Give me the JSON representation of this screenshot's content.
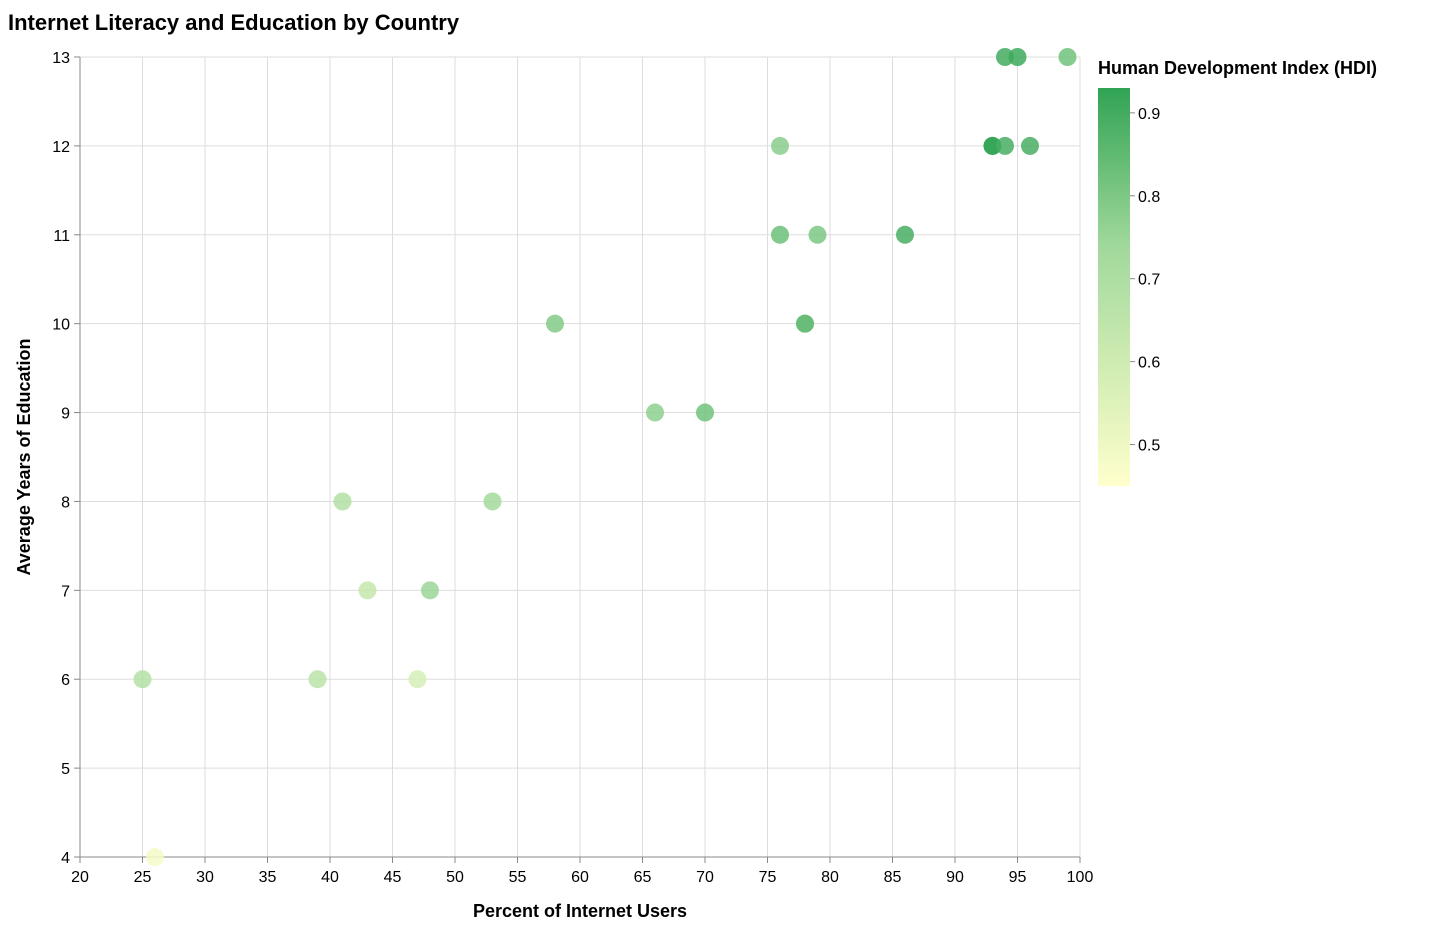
{
  "chart_data": {
    "type": "scatter",
    "title": "Internet Literacy and Education by Country",
    "xlabel": "Percent of Internet Users",
    "ylabel": "Average Years of Education",
    "xlim": [
      20,
      100
    ],
    "ylim": [
      4,
      13
    ],
    "x_ticks": [
      "20",
      "25",
      "30",
      "35",
      "40",
      "45",
      "50",
      "55",
      "60",
      "65",
      "70",
      "75",
      "80",
      "85",
      "90",
      "95",
      "100"
    ],
    "y_ticks": [
      "4",
      "5",
      "6",
      "7",
      "8",
      "9",
      "10",
      "11",
      "12",
      "13"
    ],
    "grid": true,
    "legend": {
      "title": "Human Development Index (HDI)",
      "placement": "top-right",
      "type": "gradient",
      "min": 0.45,
      "max": 0.93,
      "ticks": [
        "0.5",
        "0.6",
        "0.7",
        "0.8",
        "0.9"
      ],
      "color_low": "#ffffcc",
      "color_mid": "#a1d99b",
      "color_high": "#31a354"
    },
    "points": [
      {
        "x": 99,
        "y": 13,
        "hdi": 0.82
      },
      {
        "x": 94,
        "y": 13,
        "hdi": 0.9
      },
      {
        "x": 95,
        "y": 13,
        "hdi": 0.91
      },
      {
        "x": 93,
        "y": 12,
        "hdi": 0.92
      },
      {
        "x": 93,
        "y": 12,
        "hdi": 0.93
      },
      {
        "x": 94,
        "y": 12,
        "hdi": 0.89
      },
      {
        "x": 96,
        "y": 12,
        "hdi": 0.89
      },
      {
        "x": 76,
        "y": 12,
        "hdi": 0.78
      },
      {
        "x": 76,
        "y": 11,
        "hdi": 0.83
      },
      {
        "x": 79,
        "y": 11,
        "hdi": 0.8
      },
      {
        "x": 86,
        "y": 11,
        "hdi": 0.89
      },
      {
        "x": 58,
        "y": 10,
        "hdi": 0.79
      },
      {
        "x": 78,
        "y": 10,
        "hdi": 0.85
      },
      {
        "x": 78,
        "y": 10,
        "hdi": 0.84
      },
      {
        "x": 66,
        "y": 9,
        "hdi": 0.77
      },
      {
        "x": 70,
        "y": 9,
        "hdi": 0.82
      },
      {
        "x": 41,
        "y": 8,
        "hdi": 0.69
      },
      {
        "x": 53,
        "y": 8,
        "hdi": 0.73
      },
      {
        "x": 43,
        "y": 7,
        "hdi": 0.63
      },
      {
        "x": 48,
        "y": 7,
        "hdi": 0.75
      },
      {
        "x": 25,
        "y": 6,
        "hdi": 0.68
      },
      {
        "x": 39,
        "y": 6,
        "hdi": 0.66
      },
      {
        "x": 47,
        "y": 6,
        "hdi": 0.58
      },
      {
        "x": 26,
        "y": 4,
        "hdi": 0.48
      }
    ]
  }
}
